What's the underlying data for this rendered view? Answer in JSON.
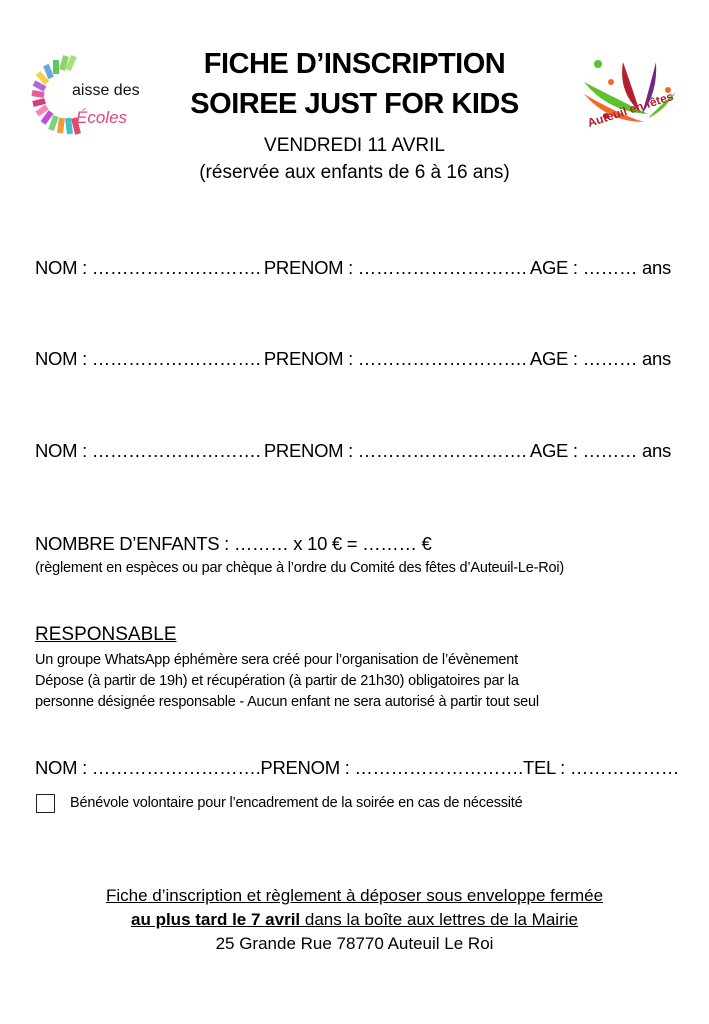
{
  "logos": {
    "left": {
      "text_line1": "aisse des",
      "text_line2": "Écoles",
      "full": "Caisse des Écoles"
    },
    "right": {
      "text": "Auteuil en fêtes"
    }
  },
  "header": {
    "title_line1": "FICHE D’INSCRIPTION",
    "title_line2": "SOIREE JUST FOR KIDS",
    "date": "VENDREDI 11 AVRIL",
    "age_note": "(réservée aux enfants de 6 à 16 ans)"
  },
  "children": [
    {
      "nom": "NOM : ……………………….",
      "prenom": "PRENOM : ……………………….",
      "age": "AGE : ……… ans"
    },
    {
      "nom": "NOM : ……………………….",
      "prenom": "PRENOM : ……………………….",
      "age": "AGE : ……… ans"
    },
    {
      "nom": "NOM : ……………………….",
      "prenom": "PRENOM : ……………………….",
      "age": "AGE : ……… ans"
    }
  ],
  "payment": {
    "line": "NOMBRE D’ENFANTS : ……… x 10 € = ……… €",
    "note": "(règlement en espèces ou par chèque à l’ordre du Comité des fêtes d’Auteuil-Le-Roi)"
  },
  "responsable": {
    "heading": "RESPONSABLE",
    "lines": [
      "Un groupe WhatsApp éphémère sera créé pour l’organisation de l’évènement",
      "Dépose (à partir de 19h) et récupération (à partir de 21h30) obligatoires par la",
      "personne désignée responsable - Aucun enfant ne sera autorisé à partir tout seul"
    ],
    "nom": "NOM : ……………………….",
    "prenom": "PRENOM : ……………………….",
    "tel": "TEL : ………………",
    "volunteer_label": "Bénévole volontaire pour l’encadrement de la soirée en cas de nécessité",
    "volunteer_checked": false
  },
  "footer": {
    "line1": "Fiche d’inscription et règlement à déposer sous enveloppe fermée",
    "line2_bold": "au plus tard le 7 avril",
    "line2_rest": " dans la boîte aux lettres de la Mairie",
    "line3": "25 Grande Rue 78770 Auteuil Le Roi"
  }
}
